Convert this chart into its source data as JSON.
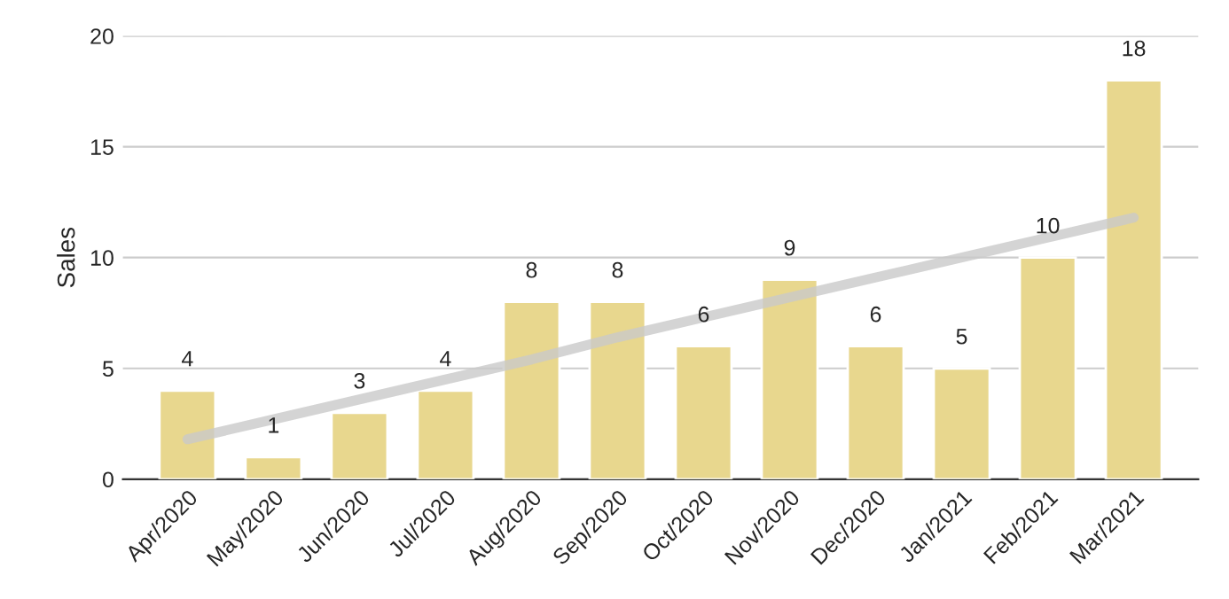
{
  "chart_data": {
    "type": "bar",
    "ylabel": "Sales",
    "categories": [
      "Apr/2020",
      "May/2020",
      "Jun/2020",
      "Jul/2020",
      "Aug/2020",
      "Sep/2020",
      "Oct/2020",
      "Nov/2020",
      "Dec/2020",
      "Jan/2021",
      "Feb/2021",
      "Mar/2021"
    ],
    "series": [
      {
        "color": "#e8d78e",
        "values": [
          4,
          1,
          3,
          4,
          8,
          8,
          6,
          9,
          6,
          5,
          10,
          18
        ],
        "data_labels": true
      },
      {
        "type": "line",
        "color": "#c9c9c9",
        "values": [
          1.8,
          2.7,
          3.6,
          4.5,
          5.4,
          6.4,
          7.3,
          8.2,
          9.1,
          10.0,
          10.9,
          11.8
        ]
      }
    ],
    "ylim": [
      0,
      20
    ],
    "yticks": [
      0,
      5,
      10,
      15,
      20
    ],
    "grid": "y",
    "legend": false
  }
}
